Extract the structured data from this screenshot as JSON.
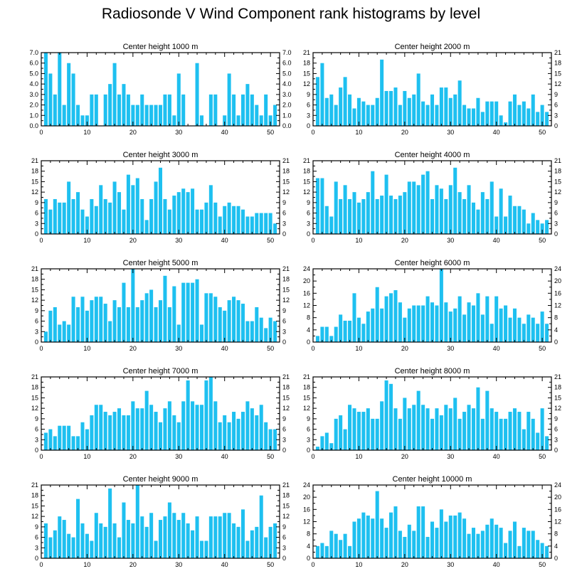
{
  "figure": {
    "title": "Radiosonde V Wind Component rank histograms by level",
    "bar_color": "#1ec0f0",
    "axis_color": "#000000"
  },
  "chart_data": [
    {
      "type": "bar",
      "title": "Center height 1000 m",
      "xlabel": "",
      "ylabel": "",
      "xlim": [
        0,
        52
      ],
      "ylim": [
        0,
        7
      ],
      "yticks": [
        0,
        1,
        2,
        3,
        4,
        5,
        6,
        7
      ],
      "ytick_labels": [
        "0.0",
        "1.0",
        "2.0",
        "3.0",
        "4.0",
        "5.0",
        "6.0",
        "7.0"
      ],
      "xticks": [
        0,
        10,
        20,
        30,
        40,
        50
      ],
      "xtick_labels": [
        "0",
        "10",
        "20",
        "30",
        "40",
        "50"
      ],
      "categories": [
        1,
        2,
        3,
        4,
        5,
        6,
        7,
        8,
        9,
        10,
        11,
        12,
        13,
        14,
        15,
        16,
        17,
        18,
        19,
        20,
        21,
        22,
        23,
        24,
        25,
        26,
        27,
        28,
        29,
        30,
        31,
        32,
        33,
        34,
        35,
        36,
        37,
        38,
        39,
        40,
        41,
        42,
        43,
        44,
        45,
        46,
        47,
        48,
        49,
        50,
        51
      ],
      "values": [
        7,
        5,
        3,
        7,
        2,
        6,
        5,
        2,
        1,
        1,
        3,
        3,
        0,
        3,
        4,
        6,
        3,
        4,
        3,
        2,
        2,
        3,
        2,
        2,
        2,
        2,
        3,
        3,
        1,
        5,
        3,
        0,
        0,
        6,
        1,
        0,
        3,
        3,
        0,
        1,
        5,
        3,
        1,
        3,
        4,
        3,
        2,
        1,
        3,
        1,
        2
      ]
    },
    {
      "type": "bar",
      "title": "Center height 2000 m",
      "xlabel": "",
      "ylabel": "",
      "xlim": [
        0,
        52
      ],
      "ylim": [
        0,
        21
      ],
      "yticks": [
        0,
        3,
        6,
        9,
        12,
        15,
        18,
        21
      ],
      "ytick_labels": [
        "0",
        "3",
        "6",
        "9",
        "12",
        "15",
        "18",
        "21"
      ],
      "xticks": [
        0,
        10,
        20,
        30,
        40,
        50
      ],
      "xtick_labels": [
        "0",
        "10",
        "20",
        "30",
        "40",
        "50"
      ],
      "categories": [
        1,
        2,
        3,
        4,
        5,
        6,
        7,
        8,
        9,
        10,
        11,
        12,
        13,
        14,
        15,
        16,
        17,
        18,
        19,
        20,
        21,
        22,
        23,
        24,
        25,
        26,
        27,
        28,
        29,
        30,
        31,
        32,
        33,
        34,
        35,
        36,
        37,
        38,
        39,
        40,
        41,
        42,
        43,
        44,
        45,
        46,
        47,
        48,
        49,
        50,
        51
      ],
      "values": [
        14,
        18,
        8,
        9,
        6,
        11,
        14,
        9,
        5,
        8,
        7,
        6,
        6,
        8,
        19,
        10,
        10,
        11,
        6,
        10,
        8,
        9,
        15,
        7,
        6,
        9,
        6,
        11,
        11,
        8,
        9,
        13,
        6,
        5,
        5,
        8,
        4,
        7,
        7,
        7,
        3,
        1,
        7,
        9,
        6,
        7,
        5,
        9,
        4,
        6,
        4
      ]
    },
    {
      "type": "bar",
      "title": "Center height 3000 m",
      "xlabel": "",
      "ylabel": "",
      "xlim": [
        0,
        52
      ],
      "ylim": [
        0,
        21
      ],
      "yticks": [
        0,
        3,
        6,
        9,
        12,
        15,
        18,
        21
      ],
      "ytick_labels": [
        "0",
        "3",
        "6",
        "9",
        "12",
        "15",
        "18",
        "21"
      ],
      "xticks": [
        0,
        10,
        20,
        30,
        40,
        50
      ],
      "xtick_labels": [
        "0",
        "10",
        "20",
        "30",
        "40",
        "50"
      ],
      "categories": [
        1,
        2,
        3,
        4,
        5,
        6,
        7,
        8,
        9,
        10,
        11,
        12,
        13,
        14,
        15,
        16,
        17,
        18,
        19,
        20,
        21,
        22,
        23,
        24,
        25,
        26,
        27,
        28,
        29,
        30,
        31,
        32,
        33,
        34,
        35,
        36,
        37,
        38,
        39,
        40,
        41,
        42,
        43,
        44,
        45,
        46,
        47,
        48,
        49,
        50,
        51
      ],
      "values": [
        10,
        7,
        10,
        9,
        9,
        15,
        10,
        12,
        7,
        5,
        10,
        8,
        14,
        10,
        9,
        15,
        12,
        7,
        17,
        14,
        16,
        10,
        4,
        10,
        15,
        19,
        10,
        7,
        11,
        12,
        13,
        12,
        13,
        7,
        7,
        9,
        14,
        9,
        5,
        8,
        9,
        8,
        8,
        7,
        5,
        5,
        6,
        6,
        6,
        6,
        3
      ]
    },
    {
      "type": "bar",
      "title": "Center height 4000 m",
      "xlabel": "",
      "ylabel": "",
      "xlim": [
        0,
        52
      ],
      "ylim": [
        0,
        21
      ],
      "yticks": [
        0,
        3,
        6,
        9,
        12,
        15,
        18,
        21
      ],
      "ytick_labels": [
        "0",
        "3",
        "6",
        "9",
        "12",
        "15",
        "18",
        "21"
      ],
      "xticks": [
        0,
        10,
        20,
        30,
        40,
        50
      ],
      "xtick_labels": [
        "0",
        "10",
        "20",
        "30",
        "40",
        "50"
      ],
      "categories": [
        1,
        2,
        3,
        4,
        5,
        6,
        7,
        8,
        9,
        10,
        11,
        12,
        13,
        14,
        15,
        16,
        17,
        18,
        19,
        20,
        21,
        22,
        23,
        24,
        25,
        26,
        27,
        28,
        29,
        30,
        31,
        32,
        33,
        34,
        35,
        36,
        37,
        38,
        39,
        40,
        41,
        42,
        43,
        44,
        45,
        46,
        47,
        48,
        49,
        50,
        51
      ],
      "values": [
        16,
        16,
        8,
        5,
        15,
        10,
        14,
        10,
        12,
        9,
        10,
        12,
        18,
        10,
        11,
        17,
        11,
        10,
        11,
        12,
        15,
        15,
        14,
        17,
        18,
        10,
        14,
        13,
        10,
        14,
        19,
        12,
        10,
        14,
        9,
        7,
        12,
        10,
        15,
        5,
        13,
        5,
        11,
        8,
        8,
        7,
        3,
        6,
        4,
        3,
        4
      ]
    },
    {
      "type": "bar",
      "title": "Center height 5000 m",
      "xlabel": "",
      "ylabel": "",
      "xlim": [
        0,
        52
      ],
      "ylim": [
        0,
        21
      ],
      "yticks": [
        0,
        3,
        6,
        9,
        12,
        15,
        18,
        21
      ],
      "ytick_labels": [
        "0",
        "3",
        "6",
        "9",
        "12",
        "15",
        "18",
        "21"
      ],
      "xticks": [
        0,
        10,
        20,
        30,
        40,
        50
      ],
      "xtick_labels": [
        "0",
        "10",
        "20",
        "30",
        "40",
        "50"
      ],
      "categories": [
        1,
        2,
        3,
        4,
        5,
        6,
        7,
        8,
        9,
        10,
        11,
        12,
        13,
        14,
        15,
        16,
        17,
        18,
        19,
        20,
        21,
        22,
        23,
        24,
        25,
        26,
        27,
        28,
        29,
        30,
        31,
        32,
        33,
        34,
        35,
        36,
        37,
        38,
        39,
        40,
        41,
        42,
        43,
        44,
        45,
        46,
        47,
        48,
        49,
        50,
        51
      ],
      "values": [
        3,
        9,
        10,
        5,
        6,
        5,
        13,
        10,
        13,
        9,
        12,
        13,
        13,
        11,
        6,
        12,
        10,
        17,
        10,
        21,
        10,
        12,
        14,
        15,
        10,
        12,
        19,
        10,
        16,
        5,
        17,
        17,
        17,
        18,
        5,
        14,
        14,
        13,
        10,
        9,
        12,
        13,
        12,
        11,
        6,
        6,
        10,
        7,
        4,
        7,
        6
      ]
    },
    {
      "type": "bar",
      "title": "Center height 6000 m",
      "xlabel": "",
      "ylabel": "",
      "xlim": [
        0,
        52
      ],
      "ylim": [
        0,
        24
      ],
      "yticks": [
        0,
        4,
        8,
        12,
        16,
        20,
        24
      ],
      "ytick_labels": [
        "0",
        "4",
        "8",
        "12",
        "16",
        "20",
        "24"
      ],
      "xticks": [
        0,
        10,
        20,
        30,
        40,
        50
      ],
      "xtick_labels": [
        "0",
        "10",
        "20",
        "30",
        "40",
        "50"
      ],
      "categories": [
        1,
        2,
        3,
        4,
        5,
        6,
        7,
        8,
        9,
        10,
        11,
        12,
        13,
        14,
        15,
        16,
        17,
        18,
        19,
        20,
        21,
        22,
        23,
        24,
        25,
        26,
        27,
        28,
        29,
        30,
        31,
        32,
        33,
        34,
        35,
        36,
        37,
        38,
        39,
        40,
        41,
        42,
        43,
        44,
        45,
        46,
        47,
        48,
        49,
        50,
        51
      ],
      "values": [
        2,
        5,
        5,
        2,
        5,
        9,
        7,
        7,
        16,
        8,
        6,
        10,
        11,
        18,
        11,
        15,
        16,
        17,
        13,
        8,
        11,
        12,
        12,
        12,
        15,
        13,
        12,
        24,
        13,
        10,
        11,
        15,
        9,
        13,
        12,
        16,
        9,
        15,
        6,
        15,
        11,
        12,
        8,
        11,
        8,
        6,
        9,
        8,
        6,
        10,
        6
      ]
    },
    {
      "type": "bar",
      "title": "Center height 7000 m",
      "xlabel": "",
      "ylabel": "",
      "xlim": [
        0,
        52
      ],
      "ylim": [
        0,
        21
      ],
      "yticks": [
        0,
        3,
        6,
        9,
        12,
        15,
        18,
        21
      ],
      "ytick_labels": [
        "0",
        "3",
        "6",
        "9",
        "12",
        "15",
        "18",
        "21"
      ],
      "xticks": [
        0,
        10,
        20,
        30,
        40,
        50
      ],
      "xtick_labels": [
        "0",
        "10",
        "20",
        "30",
        "40",
        "50"
      ],
      "categories": [
        1,
        2,
        3,
        4,
        5,
        6,
        7,
        8,
        9,
        10,
        11,
        12,
        13,
        14,
        15,
        16,
        17,
        18,
        19,
        20,
        21,
        22,
        23,
        24,
        25,
        26,
        27,
        28,
        29,
        30,
        31,
        32,
        33,
        34,
        35,
        36,
        37,
        38,
        39,
        40,
        41,
        42,
        43,
        44,
        45,
        46,
        47,
        48,
        49,
        50,
        51
      ],
      "values": [
        5,
        6,
        4,
        7,
        7,
        7,
        4,
        4,
        8,
        6,
        10,
        13,
        13,
        11,
        10,
        11,
        12,
        10,
        10,
        14,
        12,
        12,
        17,
        13,
        11,
        8,
        12,
        14,
        10,
        8,
        14,
        20,
        14,
        13,
        13,
        20,
        21,
        14,
        8,
        10,
        8,
        11,
        9,
        11,
        14,
        12,
        10,
        13,
        8,
        6,
        6
      ]
    },
    {
      "type": "bar",
      "title": "Center height 8000 m",
      "xlabel": "",
      "ylabel": "",
      "xlim": [
        0,
        52
      ],
      "ylim": [
        0,
        21
      ],
      "yticks": [
        0,
        3,
        6,
        9,
        12,
        15,
        18,
        21
      ],
      "ytick_labels": [
        "0",
        "3",
        "6",
        "9",
        "12",
        "15",
        "18",
        "21"
      ],
      "xticks": [
        0,
        10,
        20,
        30,
        40,
        50
      ],
      "xtick_labels": [
        "0",
        "10",
        "20",
        "30",
        "40",
        "50"
      ],
      "categories": [
        1,
        2,
        3,
        4,
        5,
        6,
        7,
        8,
        9,
        10,
        11,
        12,
        13,
        14,
        15,
        16,
        17,
        18,
        19,
        20,
        21,
        22,
        23,
        24,
        25,
        26,
        27,
        28,
        29,
        30,
        31,
        32,
        33,
        34,
        35,
        36,
        37,
        38,
        39,
        40,
        41,
        42,
        43,
        44,
        45,
        46,
        47,
        48,
        49,
        50,
        51
      ],
      "values": [
        1,
        4,
        5,
        2,
        9,
        10,
        6,
        13,
        12,
        11,
        11,
        12,
        9,
        9,
        14,
        20,
        19,
        12,
        9,
        15,
        12,
        13,
        17,
        13,
        12,
        9,
        12,
        10,
        13,
        12,
        15,
        9,
        11,
        13,
        12,
        18,
        9,
        17,
        12,
        11,
        9,
        9,
        11,
        12,
        11,
        6,
        11,
        9,
        5,
        12,
        4
      ]
    },
    {
      "type": "bar",
      "title": "Center height 9000 m",
      "xlabel": "",
      "ylabel": "",
      "xlim": [
        0,
        52
      ],
      "ylim": [
        0,
        21
      ],
      "yticks": [
        0,
        3,
        6,
        9,
        12,
        15,
        18,
        21
      ],
      "ytick_labels": [
        "0",
        "3",
        "6",
        "9",
        "12",
        "15",
        "18",
        "21"
      ],
      "xticks": [
        0,
        10,
        20,
        30,
        40,
        50
      ],
      "xtick_labels": [
        "0",
        "10",
        "20",
        "30",
        "40",
        "50"
      ],
      "categories": [
        1,
        2,
        3,
        4,
        5,
        6,
        7,
        8,
        9,
        10,
        11,
        12,
        13,
        14,
        15,
        16,
        17,
        18,
        19,
        20,
        21,
        22,
        23,
        24,
        25,
        26,
        27,
        28,
        29,
        30,
        31,
        32,
        33,
        34,
        35,
        36,
        37,
        38,
        39,
        40,
        41,
        42,
        43,
        44,
        45,
        46,
        47,
        48,
        49,
        50,
        51
      ],
      "values": [
        10,
        6,
        8,
        12,
        11,
        7,
        6,
        17,
        10,
        7,
        5,
        13,
        10,
        9,
        20,
        10,
        6,
        16,
        11,
        10,
        21,
        12,
        9,
        13,
        5,
        11,
        12,
        16,
        13,
        11,
        13,
        10,
        8,
        12,
        5,
        5,
        12,
        12,
        12,
        13,
        13,
        10,
        9,
        14,
        5,
        8,
        9,
        18,
        6,
        9,
        10
      ]
    },
    {
      "type": "bar",
      "title": "Center height 10000 m",
      "xlabel": "",
      "ylabel": "",
      "xlim": [
        0,
        52
      ],
      "ylim": [
        0,
        24
      ],
      "yticks": [
        0,
        4,
        8,
        12,
        16,
        20,
        24
      ],
      "ytick_labels": [
        "0",
        "4",
        "8",
        "12",
        "16",
        "20",
        "24"
      ],
      "xticks": [
        0,
        10,
        20,
        30,
        40,
        50
      ],
      "xtick_labels": [
        "0",
        "10",
        "20",
        "30",
        "40",
        "50"
      ],
      "categories": [
        1,
        2,
        3,
        4,
        5,
        6,
        7,
        8,
        9,
        10,
        11,
        12,
        13,
        14,
        15,
        16,
        17,
        18,
        19,
        20,
        21,
        22,
        23,
        24,
        25,
        26,
        27,
        28,
        29,
        30,
        31,
        32,
        33,
        34,
        35,
        36,
        37,
        38,
        39,
        40,
        41,
        42,
        43,
        44,
        45,
        46,
        47,
        48,
        49,
        50,
        51
      ],
      "values": [
        4,
        5,
        4,
        9,
        8,
        6,
        8,
        4,
        12,
        13,
        15,
        14,
        13,
        22,
        13,
        10,
        15,
        17,
        9,
        7,
        11,
        9,
        17,
        17,
        7,
        12,
        10,
        16,
        12,
        14,
        14,
        15,
        13,
        8,
        10,
        8,
        9,
        11,
        13,
        11,
        10,
        5,
        9,
        12,
        4,
        10,
        9,
        9,
        6,
        5,
        4
      ]
    }
  ]
}
